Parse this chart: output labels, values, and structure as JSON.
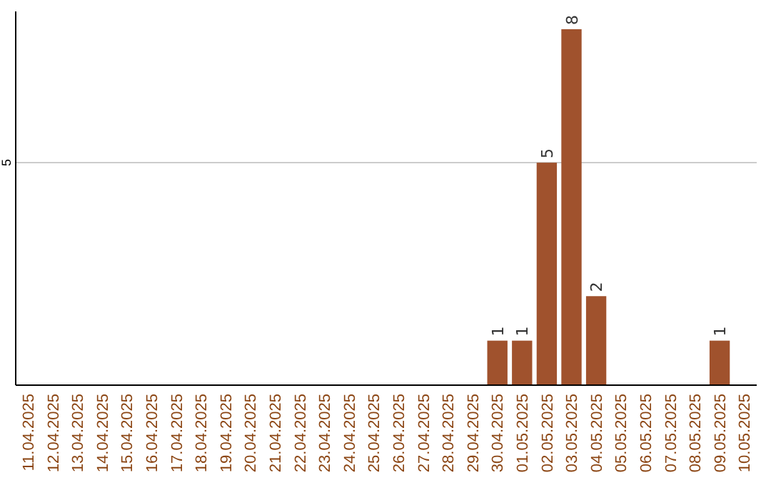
{
  "chart_data": {
    "type": "bar",
    "categories": [
      "11.04.2025",
      "12.04.2025",
      "13.04.2025",
      "14.04.2025",
      "15.04.2025",
      "16.04.2025",
      "17.04.2025",
      "18.04.2025",
      "19.04.2025",
      "20.04.2025",
      "21.04.2025",
      "22.04.2025",
      "23.04.2025",
      "24.04.2025",
      "25.04.2025",
      "26.04.2025",
      "27.04.2025",
      "28.04.2025",
      "29.04.2025",
      "30.04.2025",
      "01.05.2025",
      "02.05.2025",
      "03.05.2025",
      "04.05.2025",
      "05.05.2025",
      "06.05.2025",
      "07.05.2025",
      "08.05.2025",
      "09.05.2025",
      "10.05.2025"
    ],
    "values": [
      null,
      null,
      null,
      null,
      null,
      null,
      null,
      null,
      null,
      null,
      null,
      null,
      null,
      null,
      null,
      null,
      null,
      null,
      null,
      1,
      1,
      5,
      8,
      2,
      null,
      null,
      null,
      null,
      1,
      null
    ],
    "data_labels": true,
    "color": "#a0522d",
    "ylim": [
      0,
      8.4
    ],
    "yticks": [
      5
    ],
    "grid": "y"
  }
}
